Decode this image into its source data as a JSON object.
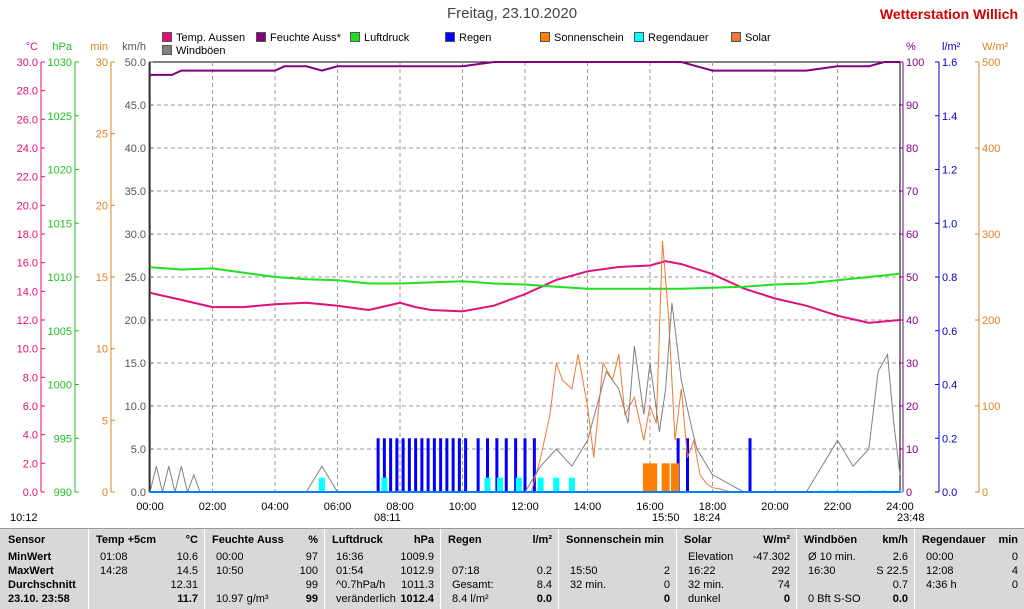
{
  "title": "Freitag, 23.10.2020",
  "station": "Wetterstation Willich",
  "legend": [
    {
      "label": "Temp. Aussen",
      "color": "#e0107a"
    },
    {
      "label": "Feuchte Auss*",
      "color": "#800080"
    },
    {
      "label": "Luftdruck",
      "color": "#20e020"
    },
    {
      "label": "Regen",
      "color": "#0000ff"
    },
    {
      "label": "Sonnenschein",
      "color": "#ff8000"
    },
    {
      "label": "Regendauer",
      "color": "#00ffff"
    },
    {
      "label": "Solar",
      "color": "#f07830"
    },
    {
      "label": "Windböen",
      "color": "#808080"
    }
  ],
  "axes": {
    "temp": {
      "unit": "°C",
      "color": "#e0107a",
      "ticks": [
        "30.0",
        "28.0",
        "26.0",
        "24.0",
        "22.0",
        "20.0",
        "18.0",
        "16.0",
        "14.0",
        "12.0",
        "10.0",
        "8.0",
        "6.0",
        "4.0",
        "2.0",
        "0.0"
      ]
    },
    "pressure": {
      "unit": "hPa",
      "color": "#20c020",
      "ticks": [
        "1030",
        "1025",
        "1020",
        "1015",
        "1010",
        "1005",
        "1000",
        "995",
        "990"
      ]
    },
    "sun_min": {
      "unit": "min",
      "color": "#e08020",
      "ticks": [
        "30",
        "25",
        "20",
        "15",
        "10",
        "5",
        "0"
      ]
    },
    "wind": {
      "unit": "km/h",
      "color": "#555555",
      "ticks": [
        "50.0",
        "45.0",
        "40.0",
        "35.0",
        "30.0",
        "25.0",
        "20.0",
        "15.0",
        "10.0",
        "5.0",
        "0.0"
      ]
    },
    "humidity": {
      "unit": "%",
      "color": "#800080",
      "ticks": [
        "100",
        "90",
        "80",
        "70",
        "60",
        "50",
        "40",
        "30",
        "20",
        "10",
        "0"
      ]
    },
    "rain": {
      "unit": "l/m²",
      "color": "#0000c0",
      "ticks": [
        "1.6",
        "1.4",
        "1.2",
        "1.0",
        "0.8",
        "0.6",
        "0.4",
        "0.2",
        "0.0"
      ]
    },
    "solar": {
      "unit": "W/m²",
      "color": "#e08020",
      "ticks": [
        "500",
        "400",
        "300",
        "200",
        "100",
        "0"
      ]
    }
  },
  "x_ticks": [
    "00:00",
    "02:00",
    "04:00",
    "06:00",
    "08:00",
    "10:00",
    "12:00",
    "14:00",
    "16:00",
    "18:00",
    "20:00",
    "22:00",
    "24:00"
  ],
  "time_marks": {
    "sunrise_left": "10:12",
    "t1": "08:11",
    "t2": "15:50",
    "t3": "18:24",
    "t4": "23:48"
  },
  "chart_data": {
    "type": "line",
    "x_unit": "hour",
    "xlim": [
      0,
      24
    ],
    "series": [
      {
        "name": "Temp. Aussen",
        "axis": "temp",
        "color": "#e0107a",
        "x": [
          0,
          1,
          2,
          3,
          4,
          5,
          6,
          7,
          8,
          8.5,
          9,
          10,
          11,
          12,
          13,
          14,
          15,
          16,
          16.5,
          17,
          18,
          19,
          20,
          21,
          22,
          23,
          24
        ],
        "y": [
          13.9,
          13.4,
          12.9,
          12.9,
          13.1,
          13.2,
          13.0,
          12.7,
          13.2,
          12.9,
          12.7,
          12.6,
          13.0,
          13.8,
          14.8,
          15.4,
          15.7,
          15.8,
          16.1,
          15.9,
          15.2,
          14.2,
          13.5,
          13.0,
          12.3,
          11.8,
          12.0
        ]
      },
      {
        "name": "Feuchte Auss*",
        "axis": "humidity",
        "color": "#800080",
        "x": [
          0,
          0.7,
          1,
          2,
          3,
          4,
          4.3,
          5,
          5.5,
          6,
          8,
          10,
          11,
          12,
          13,
          14,
          15,
          16,
          17,
          17.5,
          18,
          19,
          20,
          21,
          22,
          23,
          23.5,
          24
        ],
        "y": [
          97,
          97,
          98,
          98,
          98,
          98,
          99,
          99,
          98,
          99,
          99,
          99,
          100,
          100,
          100,
          100,
          100,
          100,
          100,
          99,
          98,
          98,
          98,
          98,
          99,
          99,
          100,
          100
        ]
      },
      {
        "name": "Luftdruck",
        "axis": "pressure",
        "color": "#20e020",
        "x": [
          0,
          1,
          2,
          3,
          4,
          5,
          6,
          7,
          8,
          9,
          10,
          11,
          12,
          13,
          14,
          15,
          16,
          17,
          18,
          19,
          20,
          21,
          22,
          23,
          24
        ],
        "y": [
          1010.9,
          1010.7,
          1010.8,
          1010.4,
          1010.0,
          1009.8,
          1009.7,
          1009.4,
          1009.4,
          1009.5,
          1009.6,
          1009.4,
          1009.3,
          1009.1,
          1008.9,
          1008.9,
          1008.9,
          1008.9,
          1009.0,
          1009.1,
          1009.3,
          1009.4,
          1009.7,
          1010.0,
          1010.3
        ]
      },
      {
        "name": "Solar",
        "axis": "solar",
        "color": "#f07830",
        "x": [
          12.2,
          12.5,
          12.8,
          13.0,
          13.2,
          13.5,
          13.7,
          14.0,
          14.2,
          14.5,
          14.8,
          15.0,
          15.2,
          15.5,
          15.8,
          16.0,
          16.2,
          16.4,
          16.6,
          16.8,
          17.0,
          17.2,
          17.4,
          17.6,
          17.8,
          18.0,
          18.3,
          18.6
        ],
        "y": [
          0,
          40,
          90,
          150,
          130,
          120,
          160,
          100,
          40,
          150,
          130,
          160,
          90,
          110,
          60,
          100,
          80,
          292,
          200,
          60,
          120,
          40,
          60,
          20,
          10,
          5,
          3,
          0
        ]
      },
      {
        "name": "Windböen",
        "axis": "wind",
        "color": "#808080",
        "x": [
          0,
          0.2,
          0.4,
          0.6,
          0.8,
          1,
          1.2,
          1.4,
          1.6,
          2,
          3,
          4,
          5,
          5.5,
          6,
          7,
          8,
          9,
          10,
          11,
          12,
          12.5,
          13,
          13.5,
          14,
          14.3,
          14.6,
          15,
          15.3,
          15.5,
          15.8,
          16,
          16.3,
          16.5,
          16.7,
          17,
          17.3,
          17.5,
          18,
          19,
          20,
          21,
          21.5,
          22,
          22.5,
          23,
          23.3,
          23.6,
          23.8,
          24
        ],
        "y": [
          0,
          3,
          0,
          3,
          0,
          3,
          0,
          2,
          0,
          0,
          0,
          0,
          0,
          3,
          0,
          0,
          0,
          0,
          0,
          0,
          0,
          3,
          5,
          3,
          6,
          10,
          14,
          12,
          8,
          17,
          9,
          15,
          7,
          12,
          22,
          13,
          8,
          5,
          2,
          0,
          0,
          0,
          3,
          6,
          3,
          5,
          14,
          16,
          8,
          2
        ]
      }
    ],
    "bars": [
      {
        "name": "Regen",
        "axis": "rain",
        "color": "#0000ff",
        "x": [
          7.3,
          7.5,
          7.7,
          7.9,
          8.1,
          8.3,
          8.5,
          8.7,
          8.9,
          9.1,
          9.3,
          9.5,
          9.7,
          9.9,
          10.1,
          10.5,
          10.8,
          11.1,
          11.4,
          11.7,
          12.0,
          12.3,
          16.9,
          17.2,
          19.2
        ],
        "y": [
          0.2,
          0.2,
          0.2,
          0.2,
          0.2,
          0.2,
          0.2,
          0.2,
          0.2,
          0.2,
          0.2,
          0.2,
          0.2,
          0.2,
          0.2,
          0.2,
          0.2,
          0.2,
          0.2,
          0.2,
          0.2,
          0.2,
          0.2,
          0.2,
          0.2
        ]
      },
      {
        "name": "Regendauer",
        "axis": "sun_min",
        "color": "#00ffff",
        "x": [
          5.5,
          7.5,
          10.8,
          11.2,
          11.8,
          12.5,
          13.0,
          13.5,
          21.5,
          22.0,
          22.5,
          23.0,
          23.5,
          24.0
        ],
        "y": [
          1,
          1,
          1,
          1,
          1,
          1,
          1,
          1,
          0.1,
          0.1,
          0.1,
          0.1,
          0.1,
          0.1
        ]
      },
      {
        "name": "Sonnenschein",
        "axis": "sun_min",
        "color": "#ff8000",
        "x": [
          15.9,
          16.1,
          16.5,
          16.8
        ],
        "y": [
          2,
          2,
          2,
          2
        ]
      }
    ],
    "ylim_temp": [
      0,
      30
    ],
    "ylim_pressure": [
      990,
      1030
    ],
    "ylim_humidity": [
      0,
      100
    ],
    "ylim_rain": [
      0,
      1.6
    ],
    "ylim_solar": [
      0,
      500
    ],
    "ylim_wind": [
      0,
      50
    ],
    "ylim_sun_min": [
      0,
      30
    ],
    "grid": true
  },
  "table": {
    "headers": [
      "Sensor",
      "Temp +5cm",
      "°C",
      "Feuchte Auss",
      "%",
      "Luftdruck",
      "hPa",
      "Regen",
      "l/m²",
      "Sonnenschein min",
      "Solar",
      "W/m²",
      "Windböen",
      "km/h",
      "Regendauer",
      "min"
    ],
    "row_labels": [
      "MinWert",
      "MaxWert",
      "Durchschnitt",
      "23.10. 23:58"
    ],
    "temp": [
      [
        "01:08",
        "10.6"
      ],
      [
        "14:28",
        "14.5"
      ],
      [
        "",
        "12.31"
      ],
      [
        "",
        "11.7"
      ]
    ],
    "hum": [
      [
        "00:00",
        "97"
      ],
      [
        "10:50",
        "100"
      ],
      [
        "",
        "99"
      ],
      [
        "10.97 g/m³",
        "99"
      ]
    ],
    "press": [
      [
        "16:36",
        "1009.9"
      ],
      [
        "01:54",
        "1012.9"
      ],
      [
        "^0.7hPa/h",
        "1011.3"
      ],
      [
        "veränderlich",
        "1012.4"
      ]
    ],
    "rain": [
      [
        "",
        ""
      ],
      [
        "07:18",
        "0.2"
      ],
      [
        "Gesamt:",
        "8.4"
      ],
      [
        "8.4 l/m²",
        "0.0"
      ]
    ],
    "sun": [
      [
        "",
        ""
      ],
      [
        "15:50",
        "2"
      ],
      [
        "32 min.",
        "0"
      ],
      [
        "",
        "0"
      ]
    ],
    "solar": [
      [
        "Elevation",
        "-47.302"
      ],
      [
        "16:22",
        "292"
      ],
      [
        "32 min.",
        "74"
      ],
      [
        "dunkel",
        "0"
      ]
    ],
    "wind": [
      [
        "Ø 10 min.",
        "2.6"
      ],
      [
        "16:30",
        "S 22.5"
      ],
      [
        "",
        "0.7"
      ],
      [
        "0 Bft S-SO",
        "0.0"
      ]
    ],
    "rdur": [
      [
        "00:00",
        "0"
      ],
      [
        "12:08",
        "4"
      ],
      [
        "4:36 h",
        "0"
      ],
      [
        "",
        ""
      ]
    ]
  }
}
